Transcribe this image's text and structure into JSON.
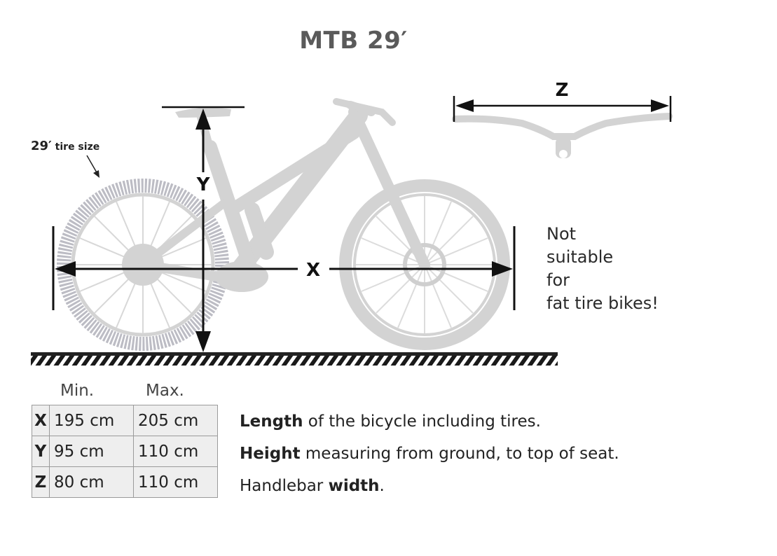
{
  "title": "MTB 29′",
  "labels": {
    "x": "X",
    "y": "Y",
    "z": "Z",
    "tire_size_num": "29′",
    "tire_size_text": "tire size"
  },
  "note": [
    "Not",
    "suitable",
    "for",
    "fat tire bikes!"
  ],
  "table": {
    "min_header": "Min.",
    "max_header": "Max.",
    "rows": [
      {
        "key": "X",
        "min": "195 cm",
        "max": "205 cm",
        "desc_bold": "Length",
        "desc_rest": " of the bicycle including tires."
      },
      {
        "key": "Y",
        "min": "95 cm",
        "max": "110 cm",
        "desc_bold": "Height",
        "desc_rest": " measuring from ground, to top of seat."
      },
      {
        "key": "Z",
        "min": "80 cm",
        "max": "110 cm",
        "desc_pre": "Handlebar ",
        "desc_bold": "width",
        "desc_rest": "."
      }
    ]
  },
  "colors": {
    "bike": "#d3d3d3",
    "bike_dark": "#c2c2c2",
    "tire_highlight": "#bcbcc4",
    "arrow": "#111111",
    "title": "#5a5a5a",
    "table_bg": "#eeeeee",
    "table_border": "#9a9a9a"
  }
}
